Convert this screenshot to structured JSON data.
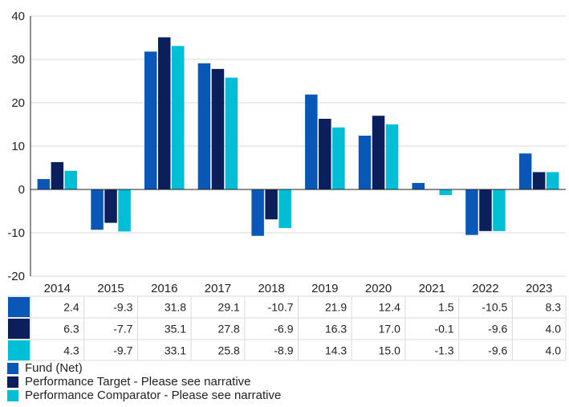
{
  "chart_data": {
    "type": "bar",
    "categories": [
      "2014",
      "2015",
      "2016",
      "2017",
      "2018",
      "2019",
      "2020",
      "2021",
      "2022",
      "2023"
    ],
    "series": [
      {
        "name": "Fund (Net)",
        "color": "#0a57b8",
        "values": [
          2.4,
          -9.3,
          31.8,
          29.1,
          -10.7,
          21.9,
          12.4,
          1.5,
          -10.5,
          8.3
        ],
        "labels": [
          "2.4",
          "-9.3",
          "31.8",
          "29.1",
          "-10.7",
          "21.9",
          "12.4",
          "1.5",
          "-10.5",
          "8.3"
        ]
      },
      {
        "name": "Performance Target - Please see narrative",
        "color": "#0b1f5c",
        "values": [
          6.3,
          -7.7,
          35.1,
          27.8,
          -6.9,
          16.3,
          17.0,
          -0.1,
          -9.6,
          4.0
        ],
        "labels": [
          "6.3",
          "-7.7",
          "35.1",
          "27.8",
          "-6.9",
          "16.3",
          "17.0",
          "-0.1",
          "-9.6",
          "4.0"
        ]
      },
      {
        "name": "Performance Comparator - Please see narrative",
        "color": "#00bed6",
        "values": [
          4.3,
          -9.7,
          33.1,
          25.8,
          -8.9,
          14.3,
          15.0,
          -1.3,
          -9.6,
          4.0
        ],
        "labels": [
          "4.3",
          "-9.7",
          "33.1",
          "25.8",
          "-8.9",
          "14.3",
          "15.0",
          "-1.3",
          "-9.6",
          "4.0"
        ]
      }
    ],
    "ylim": [
      -20,
      40
    ],
    "yticks": [
      40,
      30,
      20,
      10,
      0,
      -10,
      -20
    ],
    "grid": true,
    "legend": "bottom-left",
    "data_table": true
  }
}
